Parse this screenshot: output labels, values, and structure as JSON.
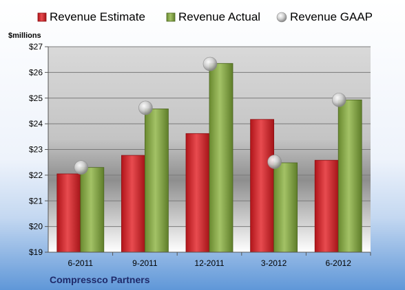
{
  "chart_data": {
    "type": "bar",
    "categories": [
      "6-2011",
      "9-2011",
      "12-2011",
      "3-2012",
      "6-2012"
    ],
    "series": [
      {
        "name": "Revenue Estimate",
        "type": "bar",
        "values": [
          22.05,
          22.77,
          23.62,
          24.17,
          22.58
        ]
      },
      {
        "name": "Revenue Actual",
        "type": "bar",
        "values": [
          22.3,
          24.58,
          26.35,
          22.48,
          24.93
        ]
      },
      {
        "name": "Revenue GAAP",
        "type": "marker",
        "values": [
          22.3,
          24.62,
          26.33,
          22.52,
          24.93
        ]
      }
    ],
    "ylabel": "$millions",
    "ylim": [
      19,
      27
    ],
    "yticks": [
      19,
      20,
      21,
      22,
      23,
      24,
      25,
      26,
      27
    ],
    "ytick_labels": [
      "$19",
      "$20",
      "$21",
      "$22",
      "$23",
      "$24",
      "$25",
      "$26",
      "$27"
    ],
    "company": "Compressco Partners",
    "grid": true,
    "legend_position": "top",
    "colors": {
      "estimate": "#cc1f24",
      "actual": "#7f9f40",
      "gaap": "#b8b8b8",
      "background_top": "#ffffff",
      "background_bottom": "#5f97d8",
      "company_text": "#1f2a6a"
    }
  }
}
